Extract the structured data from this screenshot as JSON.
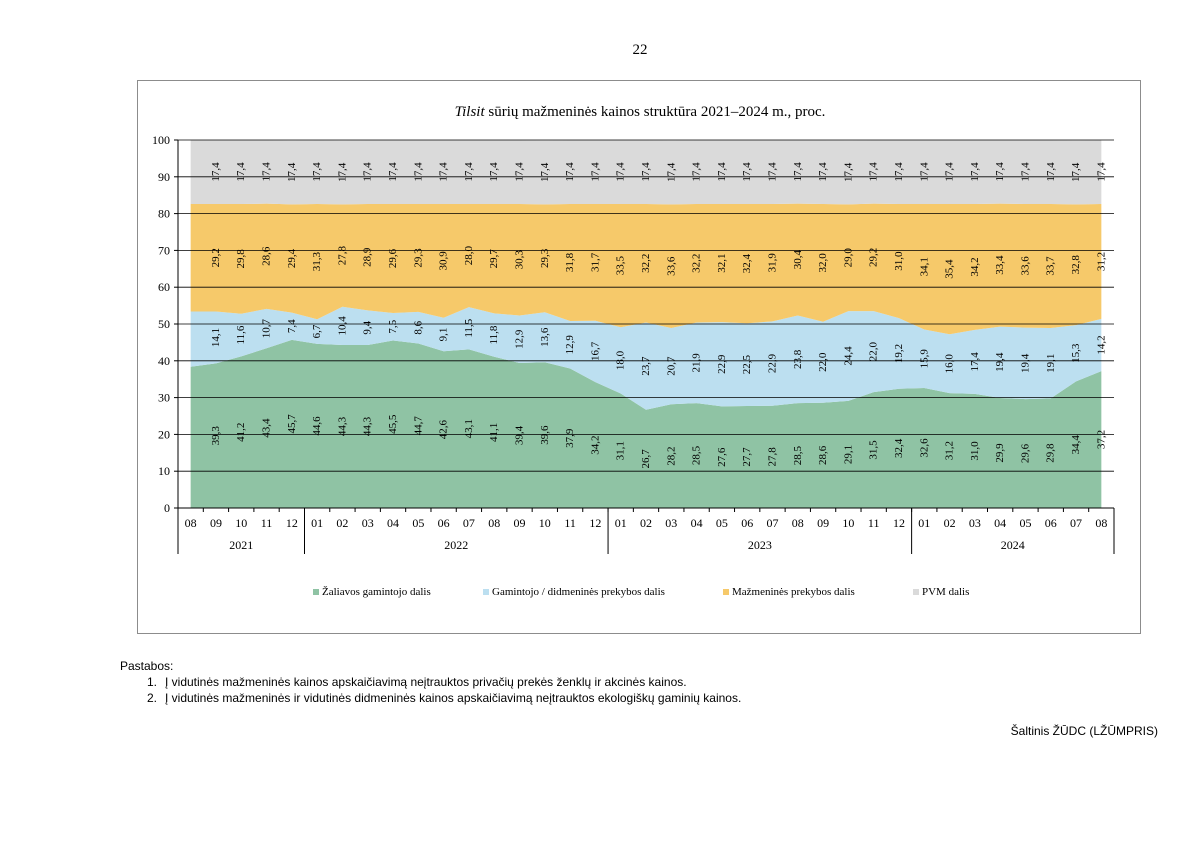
{
  "page": {
    "number": "22"
  },
  "notes": {
    "heading": "Pastabos:",
    "items": [
      {
        "num": "1.",
        "text": "Į vidutinės mažmeninės kainos apskaičiavimą neįtrauktos privačių prekės ženklų ir akcinės kainos."
      },
      {
        "num": "2.",
        "text": "Į vidutinės mažmeninės ir vidutinės didmeninės kainos apskaičiavimą neįtrauktos ekologiškų gaminių kainos."
      }
    ]
  },
  "source": "Šaltinis ŽŪDC (LŽŪMPRIS)",
  "chart_data": {
    "type": "area",
    "stacked": true,
    "title_italic": "Tilsit",
    "title_rest": " sūrių mažmeninės kainos struktūra 2021–2024 m., proc.",
    "ylim": [
      0,
      100
    ],
    "yticks": [
      "0",
      "10",
      "20",
      "30",
      "40",
      "50",
      "60",
      "70",
      "80",
      "90",
      "100"
    ],
    "grid": true,
    "legend_position": "bottom",
    "months": [
      "08",
      "09",
      "10",
      "11",
      "12",
      "01",
      "02",
      "03",
      "04",
      "05",
      "06",
      "07",
      "08",
      "09",
      "10",
      "11",
      "12",
      "01",
      "02",
      "03",
      "04",
      "05",
      "06",
      "07",
      "08",
      "09",
      "10",
      "11",
      "12",
      "01",
      "02",
      "03",
      "04",
      "05",
      "06",
      "07",
      "08"
    ],
    "years": [
      {
        "label": "2021",
        "count": 5
      },
      {
        "label": "2022",
        "count": 12
      },
      {
        "label": "2023",
        "count": 12
      },
      {
        "label": "2024",
        "count": 8
      }
    ],
    "series": [
      {
        "name": "Žaliavos gamintojo dalis",
        "color": "#8fc3a4",
        "show_labels": true,
        "values": [
          38.4,
          39.3,
          41.2,
          43.4,
          45.7,
          44.6,
          44.3,
          44.3,
          45.5,
          44.7,
          42.6,
          43.1,
          41.1,
          39.4,
          39.6,
          37.9,
          34.2,
          31.1,
          26.7,
          28.2,
          28.5,
          27.6,
          27.7,
          27.8,
          28.5,
          28.6,
          29.1,
          31.5,
          32.4,
          32.6,
          31.2,
          31.0,
          29.9,
          29.6,
          29.8,
          34.4,
          37.2
        ],
        "labels": [
          "",
          "39,3",
          "41,2",
          "43,4",
          "45,7",
          "44,6",
          "44,3",
          "44,3",
          "45,5",
          "44,7",
          "42,6",
          "43,1",
          "41,1",
          "39,4",
          "39,6",
          "37,9",
          "34,2",
          "31,1",
          "26,7",
          "28,2",
          "28,5",
          "27,6",
          "27,7",
          "27,8",
          "28,5",
          "28,6",
          "29,1",
          "31,5",
          "32,4",
          "32,6",
          "31,2",
          "31,0",
          "29,9",
          "29,6",
          "29,8",
          "34,4",
          "37,2"
        ]
      },
      {
        "name": "Gamintojo / didmeninės prekybos dalis",
        "color": "#bcdff0",
        "show_labels": true,
        "values": [
          15.0,
          14.1,
          11.6,
          10.7,
          7.4,
          6.7,
          10.4,
          9.4,
          7.5,
          8.6,
          9.1,
          11.5,
          11.8,
          12.9,
          13.6,
          12.9,
          16.7,
          18.0,
          23.7,
          20.7,
          21.9,
          22.9,
          22.5,
          22.9,
          23.8,
          22.0,
          24.4,
          22.0,
          19.2,
          15.9,
          16.0,
          17.4,
          19.4,
          19.4,
          19.1,
          15.3,
          14.2
        ],
        "labels": [
          "",
          "14,1",
          "11,6",
          "10,7",
          "7,4",
          "6,7",
          "10,4",
          "9,4",
          "7,5",
          "8,6",
          "9,1",
          "11,5",
          "11,8",
          "12,9",
          "13,6",
          "12,9",
          "16,7",
          "18,0",
          "23,7",
          "20,7",
          "21,9",
          "22,9",
          "22,5",
          "22,9",
          "23,8",
          "22,0",
          "24,4",
          "22,0",
          "19,2",
          "15,9",
          "16,0",
          "17,4",
          "19,4",
          "19,4",
          "19,1",
          "15,3",
          "14,2"
        ]
      },
      {
        "name": "Mažmeninės prekybos dalis",
        "color": "#f6c96a",
        "show_labels": true,
        "values": [
          29.2,
          29.2,
          29.8,
          28.6,
          29.4,
          31.3,
          27.8,
          28.9,
          29.6,
          29.3,
          30.9,
          28.0,
          29.7,
          30.3,
          29.3,
          31.8,
          31.7,
          33.5,
          32.2,
          33.6,
          32.2,
          32.1,
          32.4,
          31.9,
          30.4,
          32.0,
          29.0,
          29.2,
          31.0,
          34.1,
          35.4,
          34.2,
          33.4,
          33.6,
          33.7,
          32.8,
          31.2
        ],
        "labels": [
          "",
          "29,2",
          "29,8",
          "28,6",
          "29,4",
          "31,3",
          "27,8",
          "28,9",
          "29,6",
          "29,3",
          "30,9",
          "28,0",
          "29,7",
          "30,3",
          "29,3",
          "31,8",
          "31,7",
          "33,5",
          "32,2",
          "33,6",
          "32,2",
          "32,1",
          "32,4",
          "31,9",
          "30,4",
          "32,0",
          "29,0",
          "29,2",
          "31,0",
          "34,1",
          "35,4",
          "34,2",
          "33,4",
          "33,6",
          "33,7",
          "32,8",
          "31,2"
        ]
      },
      {
        "name": "PVM dalis",
        "color": "#dadada",
        "show_labels": true,
        "values": [
          17.4,
          17.4,
          17.4,
          17.4,
          17.4,
          17.4,
          17.4,
          17.4,
          17.4,
          17.4,
          17.4,
          17.4,
          17.4,
          17.4,
          17.4,
          17.4,
          17.4,
          17.4,
          17.4,
          17.4,
          17.4,
          17.4,
          17.4,
          17.4,
          17.4,
          17.4,
          17.4,
          17.4,
          17.4,
          17.4,
          17.4,
          17.4,
          17.4,
          17.4,
          17.4,
          17.4,
          17.4
        ],
        "labels": [
          "",
          "17,4",
          "17,4",
          "17,4",
          "17,4",
          "17,4",
          "17,4",
          "17,4",
          "17,4",
          "17,4",
          "17,4",
          "17,4",
          "17,4",
          "17,4",
          "17,4",
          "17,4",
          "17,4",
          "17,4",
          "17,4",
          "17,4",
          "17,4",
          "17,4",
          "17,4",
          "17,4",
          "17,4",
          "17,4",
          "17,4",
          "17,4",
          "17,4",
          "17,4",
          "17,4",
          "17,4",
          "17,4",
          "17,4",
          "17,4",
          "17,4",
          "17,4"
        ]
      }
    ]
  }
}
